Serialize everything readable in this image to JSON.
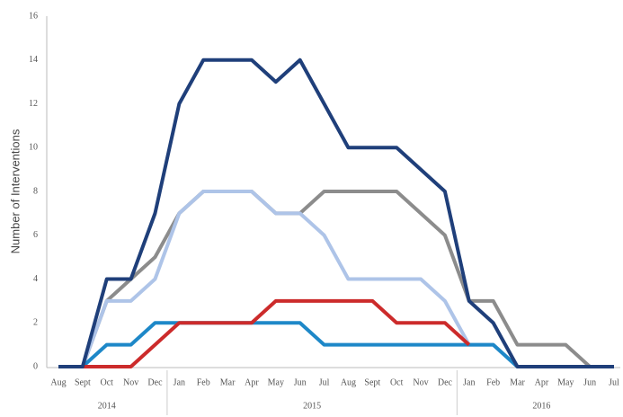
{
  "chart_data": {
    "type": "line",
    "y_label": "Number of Interventions",
    "categories": [
      "Aug",
      "Sept",
      "Oct",
      "Nov",
      "Dec",
      "Jan",
      "Feb",
      "Mar",
      "Apr",
      "May",
      "Jun",
      "Jul",
      "Aug",
      "Sept",
      "Oct",
      "Nov",
      "Dec",
      "Jan",
      "Feb",
      "Mar",
      "Apr",
      "May",
      "Jun",
      "Jul"
    ],
    "year_groups": [
      {
        "label": "2014",
        "count": 5
      },
      {
        "label": "2015",
        "count": 12
      },
      {
        "label": "2016",
        "count": 7
      }
    ],
    "ylim": [
      0,
      16
    ],
    "yticks": [
      0,
      2,
      4,
      6,
      8,
      10,
      12,
      14,
      16
    ],
    "grid": false,
    "series": [
      {
        "color": "#8c8c8c",
        "values": [
          0,
          0,
          3,
          4,
          5,
          7,
          8,
          8,
          8,
          7,
          7,
          8,
          8,
          8,
          8,
          7,
          6,
          3,
          3,
          1,
          1,
          1,
          0,
          0
        ]
      },
      {
        "color": "#aec4e8",
        "values": [
          0,
          0,
          3,
          3,
          4,
          7,
          8,
          8,
          8,
          7,
          7,
          6,
          4,
          4,
          4,
          4,
          3,
          1,
          1,
          0,
          0,
          0,
          0,
          0
        ]
      },
      {
        "color": "#1e88c8",
        "values": [
          0,
          0,
          1,
          1,
          2,
          2,
          2,
          2,
          2,
          2,
          2,
          1,
          1,
          1,
          1,
          1,
          1,
          1,
          1,
          0,
          0,
          0,
          0,
          0
        ]
      },
      {
        "color": "#cc2b2b",
        "values": [
          null,
          0,
          0,
          0,
          1,
          2,
          2,
          2,
          2,
          3,
          3,
          3,
          3,
          3,
          2,
          2,
          2,
          1,
          null,
          null,
          null,
          null,
          null,
          null
        ]
      },
      {
        "color": "#1f3f7a",
        "values": [
          0,
          0,
          4,
          4,
          7,
          12,
          14,
          14,
          14,
          13,
          14,
          12,
          10,
          10,
          10,
          9,
          8,
          3,
          2,
          0,
          0,
          0,
          0,
          0
        ]
      }
    ]
  }
}
